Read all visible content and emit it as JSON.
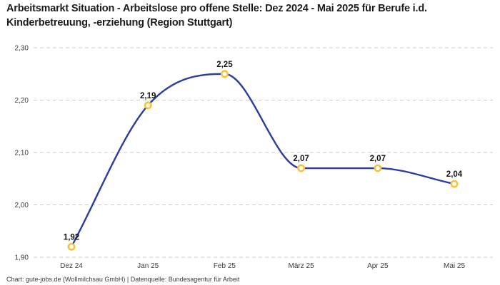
{
  "header": {
    "title": "Arbeitsmarkt Situation - Arbeitslose pro offene Stelle: Dez 2024 - Mai 2025 für Berufe i.d. Kinderbetreuung, -erziehung (Region Stuttgart)"
  },
  "chart_data": {
    "type": "line",
    "title": "Arbeitsmarkt Situation - Arbeitslose pro offene Stelle: Dez 2024 - Mai 2025 für Berufe i.d. Kinderbetreuung, -erziehung (Region Stuttgart)",
    "categories": [
      "Dez 24",
      "Jan 25",
      "Feb 25",
      "März 25",
      "Apr 25",
      "Mai 25"
    ],
    "values": [
      1.92,
      2.19,
      2.25,
      2.07,
      2.07,
      2.04
    ],
    "point_labels": [
      "1,92",
      "2,19",
      "2,25",
      "2,07",
      "2,07",
      "2,04"
    ],
    "y_tick_labels": [
      "1,90",
      "2,00",
      "2,10",
      "2,20",
      "2,30"
    ],
    "ylim": [
      1.9,
      2.3
    ],
    "y_tick_step": 0.1,
    "xlabel": "",
    "ylabel": "",
    "grid": "horizontal-dashed",
    "legend": "none",
    "smooth": true,
    "line_color": "#2b3d9f",
    "marker_color": "#f9c236",
    "marker_fill": "#ffffff",
    "grid_color": "#cccccc",
    "label_color": "#141414"
  },
  "footer": {
    "text": "Chart: gute-jobs.de (Wollmilchsau GmbH) | Datenquelle: Bundesagentur für Arbeit"
  }
}
